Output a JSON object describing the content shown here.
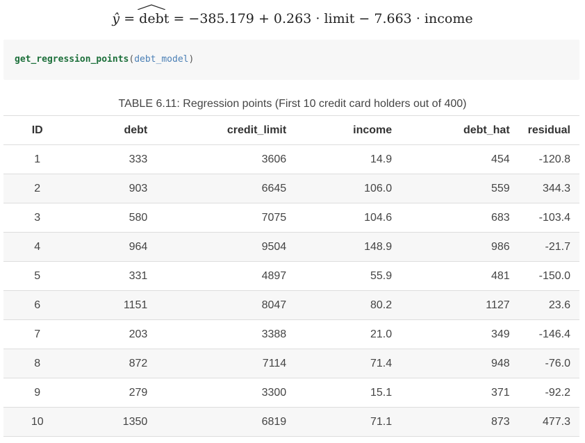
{
  "equation": {
    "lhs": "ŷ",
    "hatted": "debt",
    "eq": "=",
    "minus_sign": "−",
    "intercept": "385.179",
    "plus": "+",
    "coef1": "0.263",
    "dot": "·",
    "var1": "limit",
    "minus": "−",
    "coef2": "7.663",
    "var2": "income"
  },
  "code": {
    "function": "get_regression_points",
    "open_paren": "(",
    "argument": "debt_model",
    "close_paren": ")"
  },
  "table": {
    "caption": "TABLE 6.11: Regression points (First 10 credit card holders out of 400)",
    "headers": [
      "ID",
      "debt",
      "credit_limit",
      "income",
      "debt_hat",
      "residual"
    ],
    "rows": [
      [
        "1",
        "333",
        "3606",
        "14.9",
        "454",
        "-120.8"
      ],
      [
        "2",
        "903",
        "6645",
        "106.0",
        "559",
        "344.3"
      ],
      [
        "3",
        "580",
        "7075",
        "104.6",
        "683",
        "-103.4"
      ],
      [
        "4",
        "964",
        "9504",
        "148.9",
        "986",
        "-21.7"
      ],
      [
        "5",
        "331",
        "4897",
        "55.9",
        "481",
        "-150.0"
      ],
      [
        "6",
        "1151",
        "8047",
        "80.2",
        "1127",
        "23.6"
      ],
      [
        "7",
        "203",
        "3388",
        "21.0",
        "349",
        "-146.4"
      ],
      [
        "8",
        "872",
        "7114",
        "71.4",
        "948",
        "-76.0"
      ],
      [
        "9",
        "279",
        "3300",
        "15.1",
        "371",
        "-92.2"
      ],
      [
        "10",
        "1350",
        "6819",
        "71.1",
        "873",
        "477.3"
      ]
    ]
  }
}
